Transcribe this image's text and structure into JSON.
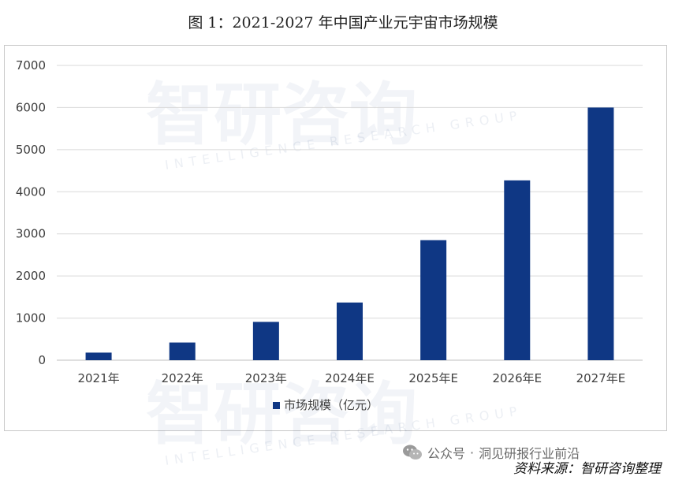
{
  "title": "图 1：2021-2027 年中国产业元宇宙市场规模",
  "watermark": {
    "cn": "智研咨询",
    "en": "INTELLIGENCE RESEARCH GROUP"
  },
  "source": "资料来源：智研咨询整理",
  "wechat": {
    "label": "公众号",
    "sep": "·",
    "account": "洞见研报行业前沿",
    "icon": "wechat-icon"
  },
  "chart_data": {
    "type": "bar",
    "categories": [
      "2021年",
      "2022年",
      "2023年",
      "2024年E",
      "2025年E",
      "2026年E",
      "2027年E"
    ],
    "series": [
      {
        "name": "市场规模（亿元）",
        "values": [
          180,
          420,
          910,
          1370,
          2850,
          4270,
          6000
        ]
      }
    ],
    "ylim": [
      0,
      7000
    ],
    "yticks": [
      "0",
      "1000",
      "2000",
      "3000",
      "4000",
      "5000",
      "6000",
      "7000"
    ],
    "grid": true,
    "legend": "bottom",
    "colors": {
      "bar": "#0f3784",
      "grid": "#d9d9d9",
      "axis": "#bfbfbf"
    }
  }
}
